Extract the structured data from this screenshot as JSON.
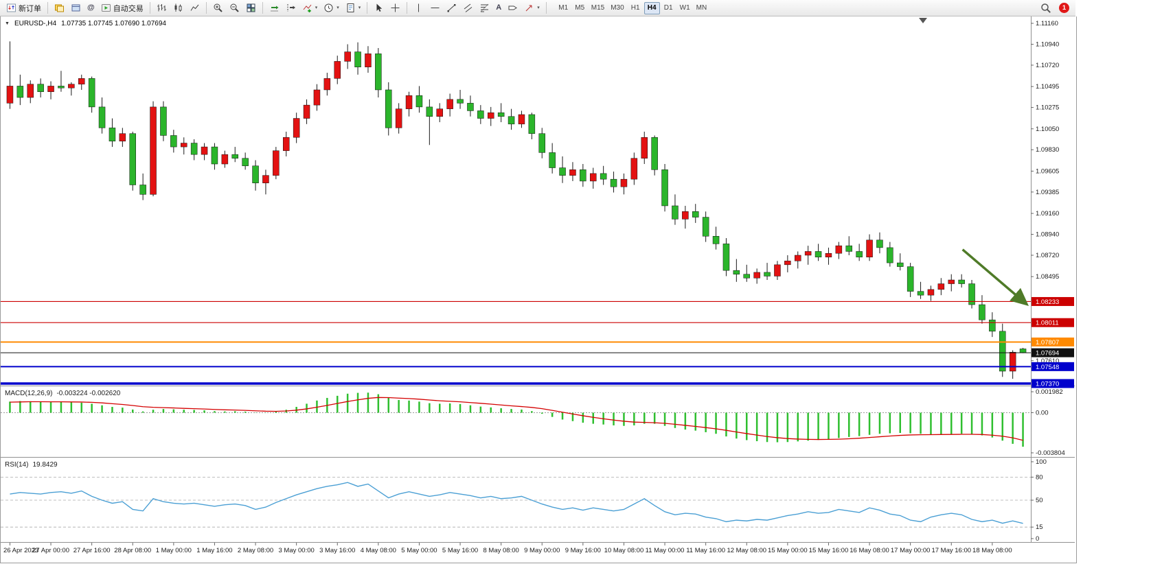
{
  "toolbar": {
    "new_order": "新订单",
    "auto_trading": "自动交易",
    "timeframes": [
      "M1",
      "M5",
      "M15",
      "M30",
      "H1",
      "H4",
      "D1",
      "W1",
      "MN"
    ],
    "active_timeframe": "H4",
    "badge_count": "1"
  },
  "icons": {
    "one_click": "▼",
    "dropdown": "▾",
    "community": "@",
    "text_tool": "A"
  },
  "chart": {
    "symbol_period": "EURUSD-,H4",
    "ohlc": "1.07735 1.07745 1.07690 1.07694"
  },
  "chart_data": {
    "type": "candlestick",
    "symbol": "EURUSD-",
    "timeframe": "H4",
    "price_range": [
      1.0737,
      1.1116
    ],
    "price_ticks": [
      "1.11160",
      "1.10940",
      "1.10720",
      "1.10495",
      "1.10275",
      "1.10050",
      "1.09830",
      "1.09605",
      "1.09385",
      "1.09160",
      "1.08940",
      "1.08720",
      "1.08495",
      "1.07610"
    ],
    "time_labels": [
      "26 Apr 2023",
      "27 Apr 00:00",
      "27 Apr 16:00",
      "28 Apr 08:00",
      "1 May 00:00",
      "1 May 16:00",
      "2 May 08:00",
      "3 May 00:00",
      "3 May 16:00",
      "4 May 08:00",
      "5 May 00:00",
      "5 May 16:00",
      "8 May 08:00",
      "9 May 00:00",
      "9 May 16:00",
      "10 May 08:00",
      "11 May 00:00",
      "11 May 16:00",
      "12 May 08:00",
      "15 May 00:00",
      "15 May 16:00",
      "16 May 08:00",
      "17 May 00:00",
      "17 May 16:00",
      "18 May 08:00"
    ],
    "colors": {
      "bull": "#e31212",
      "bear": "#2bb52b",
      "wick": "#1a1a1a",
      "macd_histogram": "#2fbf2f",
      "macd_signal": "#d40000",
      "rsi_line": "#4a9fd4",
      "axis_text": "#1a1a1a"
    },
    "levels": [
      {
        "price": 1.08233,
        "label": "1.08233",
        "color": "#cc0000",
        "width": 1.2
      },
      {
        "price": 1.08011,
        "label": "1.08011",
        "color": "#cc0000",
        "width": 1.2
      },
      {
        "price": 1.07807,
        "label": "1.07807",
        "color": "#ff8a00",
        "width": 2
      },
      {
        "price": 1.07694,
        "label": "1.07694",
        "color": "#111111",
        "width": 1
      },
      {
        "price": 1.07548,
        "label": "1.07548",
        "color": "#0000cc",
        "width": 2
      },
      {
        "price": 1.0737,
        "label": "1.07370",
        "color": "#0000cc",
        "width": 3.5
      }
    ],
    "arrow": {
      "from_bar": 93.1,
      "from_price": 1.0878,
      "to_bar": 99.3,
      "to_price": 1.0821,
      "color": "#4f7b28"
    },
    "candles": [
      [
        1.1032,
        1.1097,
        1.1026,
        1.105
      ],
      [
        1.105,
        1.1062,
        1.103,
        1.1038
      ],
      [
        1.1038,
        1.1056,
        1.1032,
        1.1052
      ],
      [
        1.1052,
        1.1058,
        1.1038,
        1.1044
      ],
      [
        1.1044,
        1.1055,
        1.1036,
        1.105
      ],
      [
        1.105,
        1.1066,
        1.1044,
        1.1048
      ],
      [
        1.1048,
        1.1054,
        1.104,
        1.1052
      ],
      [
        1.1052,
        1.1062,
        1.1046,
        1.1058
      ],
      [
        1.1058,
        1.106,
        1.1022,
        1.1028
      ],
      [
        1.1028,
        1.1038,
        1.1,
        1.1006
      ],
      [
        1.1006,
        1.1016,
        1.0986,
        1.0992
      ],
      [
        1.0992,
        1.1006,
        1.0986,
        1.1
      ],
      [
        1.1,
        1.1002,
        1.094,
        1.0946
      ],
      [
        1.0946,
        1.0958,
        1.093,
        1.0936
      ],
      [
        1.0936,
        1.1034,
        1.0934,
        1.1028
      ],
      [
        1.1028,
        1.1034,
        1.0992,
        1.0998
      ],
      [
        1.0998,
        1.1004,
        1.098,
        1.0986
      ],
      [
        1.0986,
        1.0996,
        1.0978,
        1.099
      ],
      [
        1.099,
        1.0994,
        1.0972,
        1.0978
      ],
      [
        1.0978,
        1.099,
        1.0972,
        1.0986
      ],
      [
        1.0986,
        1.099,
        1.0962,
        1.0968
      ],
      [
        1.0968,
        1.0982,
        1.0964,
        1.0978
      ],
      [
        1.0978,
        1.0986,
        1.097,
        1.0974
      ],
      [
        1.0974,
        1.098,
        1.0962,
        1.0966
      ],
      [
        1.0966,
        1.0972,
        1.094,
        1.0948
      ],
      [
        1.0948,
        1.0962,
        1.0936,
        1.0956
      ],
      [
        1.0956,
        1.0986,
        1.0952,
        1.0982
      ],
      [
        1.0982,
        1.1002,
        1.0976,
        1.0996
      ],
      [
        1.0996,
        1.1022,
        1.099,
        1.1016
      ],
      [
        1.1016,
        1.1036,
        1.101,
        1.103
      ],
      [
        1.103,
        1.1052,
        1.1024,
        1.1046
      ],
      [
        1.1046,
        1.1064,
        1.104,
        1.1058
      ],
      [
        1.1058,
        1.1082,
        1.1052,
        1.1076
      ],
      [
        1.1076,
        1.1094,
        1.1068,
        1.1086
      ],
      [
        1.1086,
        1.1096,
        1.1062,
        1.107
      ],
      [
        1.107,
        1.1092,
        1.1064,
        1.1084
      ],
      [
        1.1084,
        1.109,
        1.1038,
        1.1046
      ],
      [
        1.1046,
        1.1054,
        1.0998,
        1.1006
      ],
      [
        1.1006,
        1.1032,
        1.1,
        1.1026
      ],
      [
        1.1026,
        1.1044,
        1.1018,
        1.104
      ],
      [
        1.104,
        1.105,
        1.1022,
        1.1028
      ],
      [
        1.1028,
        1.1036,
        1.0988,
        1.1018
      ],
      [
        1.1018,
        1.1032,
        1.1012,
        1.1026
      ],
      [
        1.1026,
        1.1042,
        1.1018,
        1.1036
      ],
      [
        1.1036,
        1.1046,
        1.1026,
        1.1032
      ],
      [
        1.1032,
        1.104,
        1.1018,
        1.1024
      ],
      [
        1.1024,
        1.103,
        1.101,
        1.1016
      ],
      [
        1.1016,
        1.1028,
        1.1008,
        1.1022
      ],
      [
        1.1022,
        1.1032,
        1.1012,
        1.1018
      ],
      [
        1.1018,
        1.1026,
        1.1004,
        1.101
      ],
      [
        1.101,
        1.1024,
        1.1006,
        1.102
      ],
      [
        1.102,
        1.1022,
        1.0994,
        1.1
      ],
      [
        1.1,
        1.1006,
        1.0974,
        1.098
      ],
      [
        1.098,
        1.099,
        1.0958,
        1.0964
      ],
      [
        1.0964,
        1.0976,
        1.0948,
        1.0956
      ],
      [
        1.0956,
        1.097,
        1.095,
        1.0962
      ],
      [
        1.0962,
        1.0968,
        1.0944,
        1.095
      ],
      [
        1.095,
        1.0964,
        1.0942,
        1.0958
      ],
      [
        1.0958,
        1.0966,
        1.0946,
        1.0952
      ],
      [
        1.0952,
        1.096,
        1.0938,
        1.0944
      ],
      [
        1.0944,
        1.0958,
        1.0936,
        1.0952
      ],
      [
        1.0952,
        1.098,
        1.0946,
        1.0974
      ],
      [
        1.0974,
        1.1002,
        1.0968,
        1.0996
      ],
      [
        1.0996,
        1.0998,
        1.0956,
        1.0962
      ],
      [
        1.0962,
        1.0968,
        1.0918,
        1.0924
      ],
      [
        1.0924,
        1.0936,
        1.0904,
        1.091
      ],
      [
        1.091,
        1.0924,
        1.09,
        1.0918
      ],
      [
        1.0918,
        1.0926,
        1.0906,
        1.0912
      ],
      [
        1.0912,
        1.0918,
        1.0886,
        1.0892
      ],
      [
        1.0892,
        1.0902,
        1.0878,
        1.0884
      ],
      [
        1.0884,
        1.089,
        1.085,
        1.0856
      ],
      [
        1.0856,
        1.0868,
        1.0844,
        1.0852
      ],
      [
        1.0852,
        1.0862,
        1.0844,
        1.0848
      ],
      [
        1.0848,
        1.0858,
        1.0842,
        1.0854
      ],
      [
        1.0854,
        1.0864,
        1.0846,
        1.085
      ],
      [
        1.085,
        1.0866,
        1.0846,
        1.0862
      ],
      [
        1.0862,
        1.0872,
        1.0854,
        1.0866
      ],
      [
        1.0866,
        1.0876,
        1.0858,
        1.0872
      ],
      [
        1.0872,
        1.0882,
        1.0862,
        1.0876
      ],
      [
        1.0876,
        1.0884,
        1.0866,
        1.087
      ],
      [
        1.087,
        1.088,
        1.0862,
        1.0874
      ],
      [
        1.0874,
        1.0886,
        1.0868,
        1.0882
      ],
      [
        1.0882,
        1.0892,
        1.0872,
        1.0876
      ],
      [
        1.0876,
        1.0884,
        1.0866,
        1.087
      ],
      [
        1.087,
        1.0894,
        1.0866,
        1.0888
      ],
      [
        1.0888,
        1.0896,
        1.0874,
        1.088
      ],
      [
        1.088,
        1.0886,
        1.086,
        1.0864
      ],
      [
        1.0864,
        1.0874,
        1.0856,
        1.086
      ],
      [
        1.086,
        1.0864,
        1.0828,
        1.0834
      ],
      [
        1.0834,
        1.0844,
        1.0826,
        1.083
      ],
      [
        1.083,
        1.084,
        1.0824,
        1.0836
      ],
      [
        1.0836,
        1.0848,
        1.083,
        1.0842
      ],
      [
        1.0842,
        1.0852,
        1.0834,
        1.0846
      ],
      [
        1.0846,
        1.0852,
        1.0838,
        1.0842
      ],
      [
        1.0842,
        1.0846,
        1.0816,
        1.082
      ],
      [
        1.082,
        1.083,
        1.08,
        1.0804
      ],
      [
        1.0804,
        1.0812,
        1.0786,
        1.0792
      ],
      [
        1.0792,
        1.08,
        1.0744,
        1.075
      ],
      [
        1.075,
        1.0772,
        1.0742,
        1.077
      ],
      [
        1.07735,
        1.07745,
        1.0769,
        1.07694
      ]
    ],
    "macd": {
      "label": "MACD(12,26,9)",
      "values_text": "-0.003224 -0.002620",
      "range": [
        -0.003804,
        0.001982
      ],
      "scale": {
        "max": "0.001982",
        "zero": "0.00",
        "min": "-0.003804"
      },
      "histogram": [
        0.00105,
        0.0011,
        0.00108,
        0.00102,
        0.001,
        0.00104,
        0.00098,
        0.00095,
        0.00085,
        0.0007,
        0.00055,
        0.00048,
        0.0003,
        0.00012,
        0.00028,
        0.00035,
        0.00032,
        0.00028,
        0.00026,
        0.00022,
        0.00015,
        0.00012,
        0.00014,
        0.0001,
        2e-05,
        -2e-05,
        0.0001,
        0.00028,
        0.00055,
        0.00085,
        0.00115,
        0.0014,
        0.0016,
        0.0018,
        0.00188,
        0.0019,
        0.00175,
        0.0014,
        0.0012,
        0.00115,
        0.00105,
        0.0009,
        0.00085,
        0.00088,
        0.00082,
        0.0007,
        0.00058,
        0.0005,
        0.00042,
        0.00035,
        0.0003,
        0.00015,
        -0.0001,
        -0.0004,
        -0.00065,
        -0.0008,
        -0.00095,
        -0.00105,
        -0.00112,
        -0.0012,
        -0.00125,
        -0.0012,
        -0.00105,
        -0.00105,
        -0.00125,
        -0.00145,
        -0.0016,
        -0.0017,
        -0.00185,
        -0.002,
        -0.00225,
        -0.00245,
        -0.0026,
        -0.0027,
        -0.00278,
        -0.0028,
        -0.00278,
        -0.00272,
        -0.00265,
        -0.00258,
        -0.0025,
        -0.0024,
        -0.0023,
        -0.00222,
        -0.0021,
        -0.002,
        -0.00195,
        -0.00192,
        -0.00195,
        -0.002,
        -0.00205,
        -0.00205,
        -0.00202,
        -0.002,
        -0.00205,
        -0.00215,
        -0.00235,
        -0.00265,
        -0.00295,
        -0.003224
      ],
      "signal": [
        0.001,
        0.00102,
        0.00104,
        0.00104,
        0.00103,
        0.00103,
        0.00102,
        0.00101,
        0.00098,
        0.00093,
        0.00085,
        0.00078,
        0.00068,
        0.00057,
        0.00051,
        0.00048,
        0.00045,
        0.00041,
        0.00038,
        0.00035,
        0.00031,
        0.00027,
        0.00025,
        0.00022,
        0.00018,
        0.00014,
        0.00013,
        0.00016,
        0.00024,
        0.00036,
        0.00052,
        0.00069,
        0.00088,
        0.00106,
        0.00122,
        0.00136,
        0.00144,
        0.00143,
        0.00138,
        0.00134,
        0.00128,
        0.0012,
        0.00113,
        0.00108,
        0.00103,
        0.00096,
        0.00089,
        0.00081,
        0.00073,
        0.00065,
        0.00058,
        0.0005,
        0.00038,
        0.00022,
        5e-05,
        -0.00012,
        -0.00029,
        -0.00044,
        -0.00058,
        -0.0007,
        -0.00081,
        -0.00089,
        -0.00092,
        -0.00095,
        -0.00101,
        -0.0011,
        -0.0012,
        -0.0013,
        -0.00141,
        -0.00153,
        -0.00167,
        -0.00183,
        -0.00198,
        -0.00212,
        -0.00226,
        -0.00237,
        -0.00245,
        -0.0025,
        -0.00253,
        -0.00254,
        -0.00253,
        -0.00251,
        -0.00247,
        -0.00242,
        -0.00235,
        -0.00228,
        -0.00221,
        -0.00215,
        -0.00211,
        -0.00209,
        -0.00208,
        -0.00207,
        -0.00206,
        -0.00205,
        -0.00205,
        -0.00207,
        -0.00213,
        -0.00223,
        -0.00238,
        -0.00262
      ]
    },
    "rsi": {
      "label": "RSI(14)",
      "value_text": "19.8429",
      "range": [
        0,
        100
      ],
      "levels": [
        80,
        50,
        15
      ],
      "scale_labels": [
        "100",
        "80",
        "50",
        "15",
        "0"
      ],
      "series": [
        58,
        60,
        59,
        58,
        60,
        61,
        59,
        62,
        55,
        50,
        46,
        48,
        38,
        36,
        52,
        48,
        46,
        45,
        46,
        44,
        42,
        44,
        45,
        43,
        38,
        41,
        47,
        52,
        57,
        61,
        65,
        68,
        70,
        73,
        68,
        71,
        62,
        53,
        58,
        61,
        58,
        55,
        57,
        60,
        58,
        56,
        53,
        55,
        52,
        53,
        55,
        50,
        45,
        41,
        38,
        40,
        37,
        40,
        38,
        36,
        38,
        45,
        52,
        43,
        35,
        31,
        33,
        32,
        28,
        26,
        22,
        24,
        23,
        25,
        24,
        27,
        30,
        32,
        35,
        33,
        34,
        38,
        36,
        34,
        40,
        37,
        32,
        30,
        24,
        22,
        28,
        31,
        33,
        31,
        25,
        22,
        24,
        20,
        23,
        19.8429
      ]
    }
  }
}
